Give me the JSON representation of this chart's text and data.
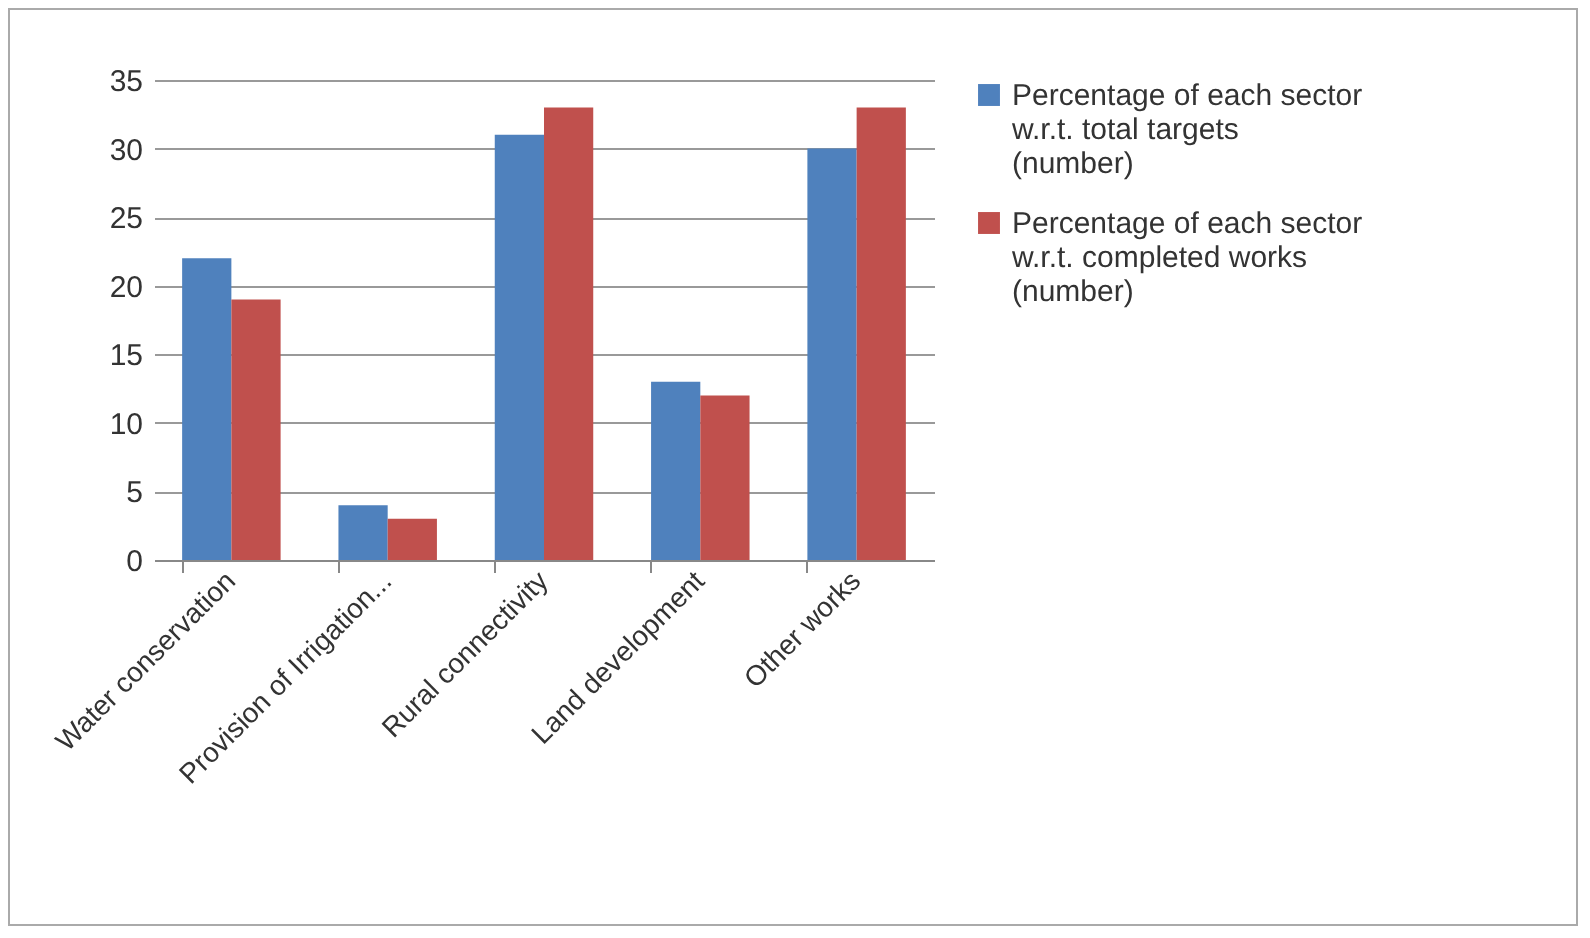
{
  "chart_data": {
    "type": "bar",
    "categories": [
      "Water conservation",
      "Provision of Irrigation...",
      "Rural connectivity",
      "Land development",
      "Other works"
    ],
    "series": [
      {
        "name": "Percentage of each sector w.r.t. total targets (number)",
        "color": "#4f81bd",
        "values": [
          22,
          4,
          31,
          13,
          30
        ]
      },
      {
        "name": "Percentage of each sector w.r.t. completed works (number)",
        "color": "#c0504d",
        "values": [
          19,
          3,
          33,
          12,
          33
        ]
      }
    ],
    "ylim": [
      0,
      35
    ],
    "yticks": [
      0,
      5,
      10,
      15,
      20,
      25,
      30,
      35
    ],
    "grid": "y",
    "legend": "right"
  }
}
